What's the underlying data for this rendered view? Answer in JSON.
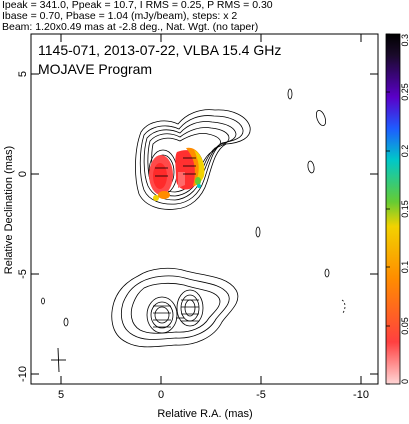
{
  "header": {
    "line1": "Ipeak = 341.0, Ppeak = 10.7, I RMS = 0.25, P RMS = 0.30",
    "line2": "Ibase = 0.70, Pbase = 1.04 (mJy/beam), steps: x 2",
    "line3": "Beam: 1.20x0.49 mas at -2.8 deg., Nat. Wgt. (no taper)"
  },
  "plot": {
    "title_line1": "1145-071, 2013-07-22, VLBA 15.4 GHz",
    "title_line2": "MOJAVE Program",
    "xlabel": "Relative R.A. (mas)",
    "ylabel": "Relative Declination (mas)",
    "x_ticks": [
      "5",
      "0",
      "-5",
      "-10"
    ],
    "y_ticks": [
      "5",
      "0",
      "-5",
      "-10"
    ],
    "colorbar_ticks": [
      "0.3",
      "0.25",
      "0.2",
      "0.15",
      "0.1",
      "0.05",
      "0"
    ]
  },
  "colors": {
    "colorbar_stops": [
      "#ffd6d6",
      "#ff3b3b",
      "#ff8c00",
      "#f2d200",
      "#66cc33",
      "#00c8c8",
      "#1e5cff",
      "#5a00c8",
      "#1a0a2a",
      "#000000"
    ]
  }
}
